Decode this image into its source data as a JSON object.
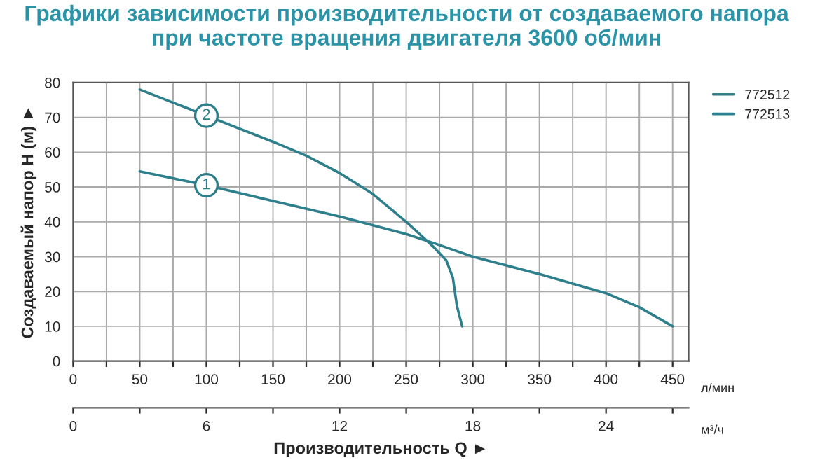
{
  "chart_data": {
    "type": "line",
    "title": "Графики зависимости производительности от создаваемого напора\nпри частоте вращения двигателя 3600 об/мин",
    "xlabel": "Производительность Q ►",
    "ylabel": "Создаваемый напор H (м) ►",
    "series": [
      {
        "name": "772512",
        "color": "#2e7f8c",
        "x": [
          50,
          100,
          150,
          200,
          250,
          270,
          300,
          350,
          400,
          425,
          450
        ],
        "values": [
          54.5,
          50.5,
          46,
          41.5,
          36.5,
          34,
          30,
          25,
          19.5,
          15.5,
          10
        ]
      },
      {
        "name": "772513",
        "color": "#2e7f8c",
        "x": [
          50,
          100,
          150,
          175,
          200,
          225,
          250,
          270,
          280,
          285,
          288,
          292
        ],
        "values": [
          78,
          70.5,
          63,
          59,
          54,
          48,
          40,
          33,
          29,
          24,
          16,
          10
        ]
      }
    ],
    "annotations": [
      {
        "text": "1",
        "x": 100,
        "y": 50.5
      },
      {
        "text": "2",
        "x": 100,
        "y": 70.5
      },
      "л/мин",
      "м³/ч"
    ],
    "xlim": [
      0,
      462
    ],
    "ylim": [
      0,
      80
    ],
    "xticks": [
      0,
      {
        "value": 25,
        "label": null
      },
      50,
      {
        "value": 75,
        "label": null
      },
      100,
      {
        "value": 125,
        "label": null
      },
      150,
      {
        "value": 175,
        "label": null
      },
      200,
      {
        "value": 225,
        "label": null
      },
      250,
      {
        "value": 275,
        "label": null
      },
      300,
      {
        "value": 325,
        "label": null
      },
      350,
      {
        "value": 375,
        "label": null
      },
      400,
      {
        "value": 425,
        "label": null
      },
      450
    ],
    "yticks": [
      0,
      10,
      20,
      30,
      40,
      50,
      60,
      70,
      80
    ],
    "x2lim": [
      0,
      27.72
    ],
    "x2ticks": [
      0,
      {
        "value": 3,
        "label": null
      },
      6,
      {
        "value": 9,
        "label": null
      },
      12,
      {
        "value": 15,
        "label": null
      },
      18,
      {
        "value": 21,
        "label": null
      },
      24,
      {
        "value": 27,
        "label": null
      }
    ],
    "grid": true,
    "legend": "right",
    "marker": "none",
    "line_style": "solid"
  }
}
